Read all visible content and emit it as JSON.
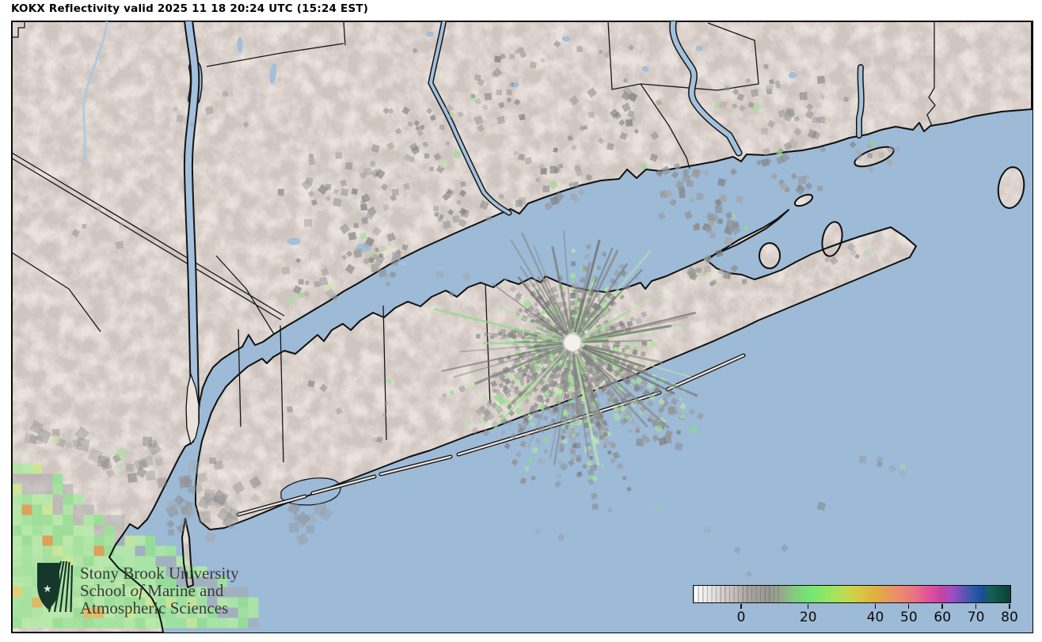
{
  "title": "KOKX Reflectivity valid 2025 11 18 20:24 UTC (15:24 EST)",
  "colorbar": {
    "ticks": [
      "0",
      "20",
      "40",
      "50",
      "60",
      "70",
      "80"
    ],
    "range_dbz": [
      -14,
      80
    ],
    "stops": [
      [
        0.0,
        "#ffffff"
      ],
      [
        0.064,
        "#e2dedd"
      ],
      [
        0.128,
        "#c2bcba"
      ],
      [
        0.17,
        "#aba5a3"
      ],
      [
        0.234,
        "#9a9792"
      ],
      [
        0.277,
        "#95a98b"
      ],
      [
        0.319,
        "#84cc80"
      ],
      [
        0.362,
        "#72e575"
      ],
      [
        0.404,
        "#86e868"
      ],
      [
        0.447,
        "#a6e25c"
      ],
      [
        0.489,
        "#c6d94e"
      ],
      [
        0.532,
        "#d9c443"
      ],
      [
        0.574,
        "#ddb13d"
      ],
      [
        0.617,
        "#e89a5d"
      ],
      [
        0.66,
        "#ec8672"
      ],
      [
        0.702,
        "#e96f86"
      ],
      [
        0.745,
        "#df4f9e"
      ],
      [
        0.787,
        "#c443a6"
      ],
      [
        0.809,
        "#a94cc0"
      ],
      [
        0.84,
        "#7b4fbe"
      ],
      [
        0.862,
        "#4b58b2"
      ],
      [
        0.894,
        "#2456a2"
      ],
      [
        0.915,
        "#1b4e90"
      ],
      [
        0.936,
        "#156058"
      ],
      [
        1.0,
        "#0b4232"
      ]
    ],
    "border_color": "#0b0b0b"
  },
  "logo": {
    "line1": "Stony Brook University",
    "line2_pre": "School ",
    "line2_italic": "of",
    "line2_post": " Marine and",
    "line3": "Atmospheric Sciences"
  },
  "colors": {
    "water": "#9dbad7",
    "land": "#eae2dd",
    "coastline": "#0f0f0f",
    "boundary": "#161616",
    "river": "#a3c1de",
    "clutter_gray": [
      "#7f7f7f",
      "#8b8b8b",
      "#979797",
      "#a5a5a5"
    ],
    "clutter_green": [
      "#a9e49c",
      "#90dc8b",
      "#c0ebaa"
    ],
    "precip_green": [
      "#9fe49a",
      "#abe8a2",
      "#b4eba6",
      "#95df92"
    ],
    "precip_yellow": [
      "#e5cc66",
      "#dfb857"
    ],
    "precip_orange": "#e09a4a",
    "radar_center_fill": "#f4f1ec",
    "logo_green": "#16382a",
    "logo_text": "#3a3a3a"
  }
}
